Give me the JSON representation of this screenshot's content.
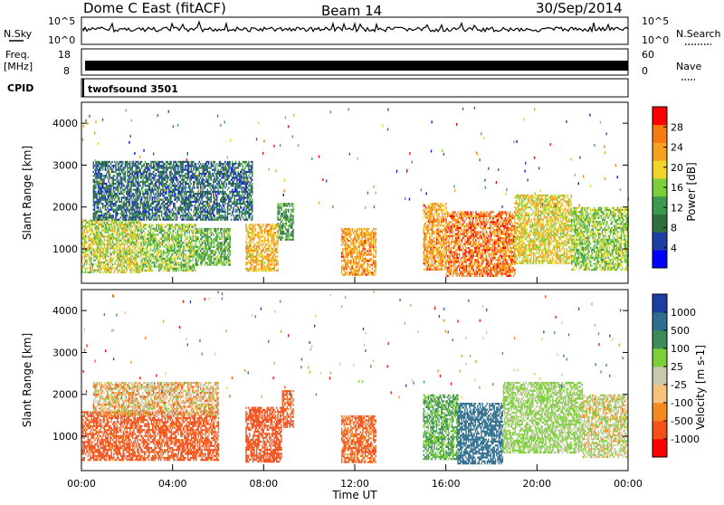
{
  "header": {
    "station": "Dome C East (fitACF)",
    "beam": "Beam 14",
    "date": "30/Sep/2014"
  },
  "summary": {
    "nsky_label": "N.Sky",
    "nsky_ticks": [
      "10^5",
      "10^0"
    ],
    "nsearch_label": "N.Search",
    "nsearch_ticks": [
      "10^5",
      "10^0"
    ],
    "freq_label_1": "Freq.",
    "freq_label_2": "[MHz]",
    "freq_ticks": [
      "18",
      "8"
    ],
    "nave_label": "Nave",
    "nave_ticks": [
      "60",
      "0"
    ],
    "cpid_label": "CPID",
    "cpid_value": "twofsound 3501"
  },
  "chart_data": [
    {
      "type": "heatmap",
      "panel": "power",
      "ylabel": "Slant Range [km]",
      "ylim": [
        180,
        4500
      ],
      "yticks": [
        1000,
        2000,
        3000,
        4000
      ],
      "xlim": [
        0,
        24
      ],
      "colorbar_label": "Power [dB]",
      "colorbar_ticks": [
        "28",
        "24",
        "20",
        "16",
        "12",
        "8",
        "4"
      ],
      "colors": [
        "#0000ff",
        "#1d3fa3",
        "#2f6e3e",
        "#3c9a4e",
        "#7dcf3a",
        "#f0d42a",
        "#f4a020",
        "#f77b10",
        "#ff0000"
      ],
      "blobs": [
        {
          "t": [
            0.0,
            2.6
          ],
          "r": [
            450,
            1700
          ],
          "v": 18
        },
        {
          "t": [
            2.6,
            5.0
          ],
          "r": [
            500,
            1600
          ],
          "v": 16
        },
        {
          "t": [
            5.0,
            6.5
          ],
          "r": [
            600,
            1500
          ],
          "v": 14
        },
        {
          "t": [
            7.2,
            8.6
          ],
          "r": [
            500,
            1600
          ],
          "v": 22
        },
        {
          "t": [
            8.6,
            9.3
          ],
          "r": [
            1200,
            2100
          ],
          "v": 12
        },
        {
          "t": [
            11.4,
            12.9
          ],
          "r": [
            400,
            1500
          ],
          "v": 24
        },
        {
          "t": [
            15.0,
            16.0
          ],
          "r": [
            500,
            2100
          ],
          "v": 24
        },
        {
          "t": [
            16.0,
            19.0
          ],
          "r": [
            350,
            1900
          ],
          "v": 26
        },
        {
          "t": [
            19.0,
            21.5
          ],
          "r": [
            650,
            2300
          ],
          "v": 20
        },
        {
          "t": [
            21.5,
            24.0
          ],
          "r": [
            500,
            2000
          ],
          "v": 16
        },
        {
          "t": [
            0.5,
            7.5
          ],
          "r": [
            1700,
            3100
          ],
          "v": 8
        }
      ]
    },
    {
      "type": "heatmap",
      "panel": "velocity",
      "ylabel": "Slant Range [km]",
      "ylim": [
        180,
        4500
      ],
      "yticks": [
        1000,
        2000,
        3000,
        4000
      ],
      "xlim": [
        0,
        24
      ],
      "xticks": [
        "00:00",
        "04:00",
        "08:00",
        "12:00",
        "16:00",
        "20:00",
        "00:00"
      ],
      "xlabel": "Time UT",
      "colorbar_label": "Velocity [m s-1]",
      "colorbar_ticks": [
        "1000",
        "500",
        "100",
        "25",
        "-25",
        "-100",
        "-500",
        "-1000"
      ],
      "colors": [
        "#ff0000",
        "#f4501a",
        "#f48a1e",
        "#f4c27a",
        "#c8c8b0",
        "#7dcf3a",
        "#3c8c5a",
        "#2f6e8e",
        "#1d3fa3"
      ],
      "blobs": [
        {
          "t": [
            0.0,
            6.0
          ],
          "r": [
            450,
            1600
          ],
          "v": -200
        },
        {
          "t": [
            0.5,
            6.0
          ],
          "r": [
            1500,
            2300
          ],
          "v": 0
        },
        {
          "t": [
            7.2,
            8.8
          ],
          "r": [
            400,
            1700
          ],
          "v": -250
        },
        {
          "t": [
            8.8,
            9.3
          ],
          "r": [
            1200,
            2100
          ],
          "v": -150
        },
        {
          "t": [
            11.4,
            12.9
          ],
          "r": [
            400,
            1500
          ],
          "v": -150
        },
        {
          "t": [
            15.0,
            16.5
          ],
          "r": [
            450,
            2000
          ],
          "v": 300
        },
        {
          "t": [
            16.5,
            18.5
          ],
          "r": [
            350,
            1800
          ],
          "v": 800
        },
        {
          "t": [
            18.5,
            22.0
          ],
          "r": [
            600,
            2300
          ],
          "v": 150
        },
        {
          "t": [
            22.0,
            24.0
          ],
          "r": [
            500,
            2000
          ],
          "v": 60
        }
      ]
    }
  ]
}
